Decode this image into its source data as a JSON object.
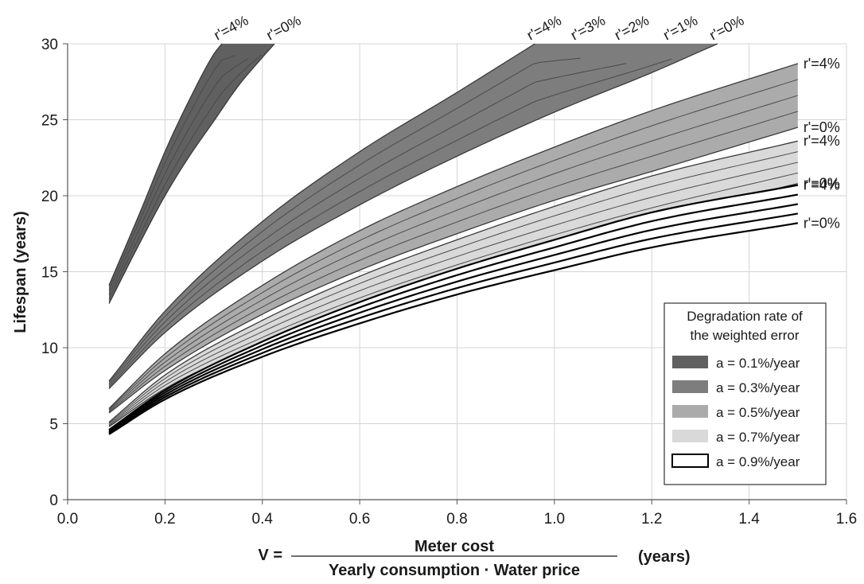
{
  "chart_data": {
    "type": "area",
    "title": "",
    "ylabel": "Lifespan (years)",
    "xlabel": {
      "prefix": "V =",
      "numerator": "Meter cost",
      "denominator": "Yearly consumption · Water price",
      "unit": "(years)"
    },
    "xlim": [
      0.0,
      1.6
    ],
    "ylim": [
      0,
      30
    ],
    "x_ticks": [
      "0.0",
      "0.2",
      "0.4",
      "0.6",
      "0.8",
      "1.0",
      "1.2",
      "1.4",
      "1.6"
    ],
    "y_ticks": [
      "0",
      "5",
      "10",
      "15",
      "20",
      "25",
      "30"
    ],
    "grid": true,
    "legend": {
      "position": "bottom-right",
      "title_lines": [
        "Degradation rate of",
        "the weighted error"
      ]
    },
    "series": [
      {
        "name": "a = 0.1%/year",
        "fill": "#606060",
        "upper": [
          [
            0.085,
            14.1
          ],
          [
            0.15,
            19.0
          ],
          [
            0.2,
            22.9
          ],
          [
            0.25,
            26.3
          ],
          [
            0.3,
            29.3
          ],
          [
            0.317,
            30.0
          ]
        ],
        "lower": [
          [
            0.085,
            12.9
          ],
          [
            0.15,
            17.0
          ],
          [
            0.2,
            20.0
          ],
          [
            0.25,
            22.6
          ],
          [
            0.3,
            24.9
          ],
          [
            0.35,
            27.2
          ],
          [
            0.4,
            29.1
          ],
          [
            0.425,
            30.0
          ]
        ],
        "top_labels": [
          {
            "text": "r'=4%",
            "x": 0.317
          },
          {
            "text": "r'=0%",
            "x": 0.425
          }
        ],
        "right_labels": []
      },
      {
        "name": "a = 0.3%/year",
        "fill": "#7d7d7d",
        "upper": [
          [
            0.085,
            7.8
          ],
          [
            0.2,
            12.4
          ],
          [
            0.4,
            18.3
          ],
          [
            0.6,
            22.9
          ],
          [
            0.8,
            26.8
          ],
          [
            0.96,
            30.0
          ]
        ],
        "lower": [
          [
            0.085,
            7.3
          ],
          [
            0.2,
            11.0
          ],
          [
            0.4,
            15.7
          ],
          [
            0.6,
            19.4
          ],
          [
            0.8,
            22.6
          ],
          [
            1.0,
            25.5
          ],
          [
            1.2,
            28.1
          ],
          [
            1.335,
            30.0
          ]
        ],
        "top_labels": [
          {
            "text": "r'=4%",
            "x": 0.96
          },
          {
            "text": "r'=3%",
            "x": 1.05
          },
          {
            "text": "r'=2%",
            "x": 1.14
          },
          {
            "text": "r'=1%",
            "x": 1.24
          },
          {
            "text": "r'=0%",
            "x": 1.335
          }
        ],
        "right_labels": []
      },
      {
        "name": "a = 0.5%/year",
        "fill": "#ababab",
        "upper": [
          [
            0.085,
            6.0
          ],
          [
            0.2,
            9.6
          ],
          [
            0.4,
            14.1
          ],
          [
            0.6,
            17.7
          ],
          [
            0.8,
            20.6
          ],
          [
            1.0,
            23.2
          ],
          [
            1.2,
            25.6
          ],
          [
            1.5,
            28.7
          ]
        ],
        "lower": [
          [
            0.085,
            5.7
          ],
          [
            0.2,
            8.5
          ],
          [
            0.4,
            12.2
          ],
          [
            0.6,
            15.1
          ],
          [
            0.8,
            17.5
          ],
          [
            1.0,
            19.7
          ],
          [
            1.2,
            21.6
          ],
          [
            1.5,
            24.5
          ]
        ],
        "top_labels": [],
        "right_labels": [
          {
            "text": "r'=4%",
            "y": 28.7
          },
          {
            "text": "r'=0%",
            "y": 24.5
          }
        ]
      },
      {
        "name": "a = 0.7%/year",
        "fill": "#d9d9d9",
        "upper": [
          [
            0.085,
            5.1
          ],
          [
            0.2,
            8.2
          ],
          [
            0.4,
            11.8
          ],
          [
            0.6,
            14.7
          ],
          [
            0.8,
            17.1
          ],
          [
            1.0,
            19.3
          ],
          [
            1.2,
            21.3
          ],
          [
            1.5,
            23.6
          ]
        ],
        "lower": [
          [
            0.085,
            4.8
          ],
          [
            0.2,
            7.3
          ],
          [
            0.4,
            10.3
          ],
          [
            0.6,
            12.8
          ],
          [
            0.8,
            14.9
          ],
          [
            1.0,
            16.8
          ],
          [
            1.2,
            18.5
          ],
          [
            1.5,
            20.8
          ]
        ],
        "top_labels": [],
        "right_labels": [
          {
            "text": "r'=4%",
            "y": 23.6
          },
          {
            "text": "r'=0%",
            "y": 20.8
          }
        ]
      },
      {
        "name": "a = 0.9%/year",
        "fill": "#ffffff",
        "upper": [
          [
            0.085,
            4.6
          ],
          [
            0.2,
            7.2
          ],
          [
            0.4,
            10.4
          ],
          [
            0.6,
            13.0
          ],
          [
            0.8,
            15.2
          ],
          [
            1.0,
            17.1
          ],
          [
            1.2,
            18.9
          ],
          [
            1.5,
            20.7
          ]
        ],
        "lower": [
          [
            0.085,
            4.3
          ],
          [
            0.2,
            6.6
          ],
          [
            0.4,
            9.4
          ],
          [
            0.6,
            11.6
          ],
          [
            0.8,
            13.5
          ],
          [
            1.0,
            15.1
          ],
          [
            1.2,
            16.6
          ],
          [
            1.5,
            18.2
          ]
        ],
        "top_labels": [],
        "right_labels": [
          {
            "text": "r'=4%",
            "y": 20.7
          },
          {
            "text": "r'=0%",
            "y": 18.2
          }
        ]
      }
    ]
  }
}
